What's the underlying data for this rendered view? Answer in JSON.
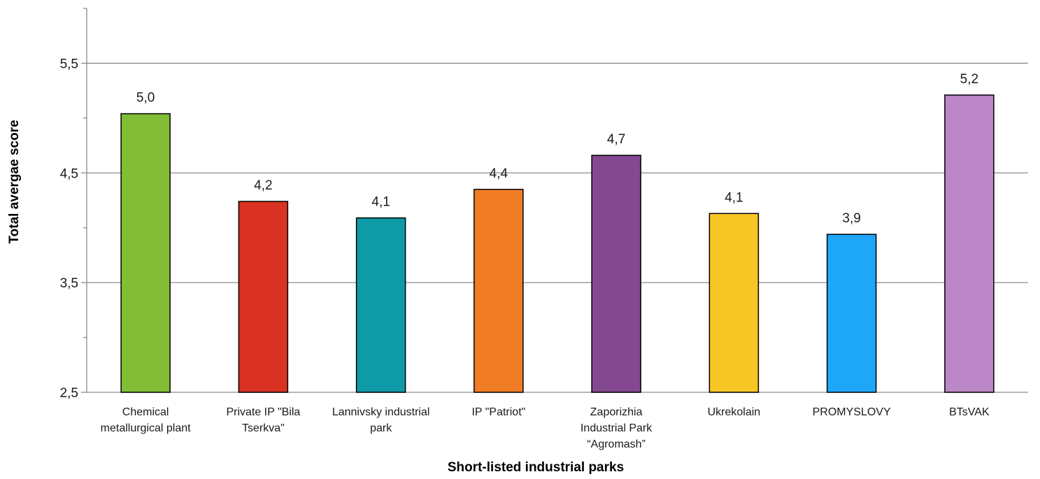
{
  "chart_data": {
    "type": "bar",
    "title": "",
    "xlabel": "Short-listed industrial parks",
    "ylabel": "Total avergae score",
    "ylim": [
      2.5,
      6.0
    ],
    "major_ticks": [
      2.5,
      3.5,
      4.5,
      5.5
    ],
    "major_tick_labels": [
      "2,5",
      "3,5",
      "4,5",
      "5,5"
    ],
    "minor_ticks": [
      3.0,
      4.0,
      5.0,
      6.0
    ],
    "grid": true,
    "legend": "none",
    "categories": [
      [
        "Chemical",
        "metallurgical plant"
      ],
      [
        "Private IP \"Bila",
        "Tserkva\""
      ],
      [
        "Lannivsky industrial",
        "park"
      ],
      [
        "IP \"Patriot\""
      ],
      [
        "Zaporizhia",
        "Industrial Park",
        "“Agromash”"
      ],
      [
        "Ukrekolain"
      ],
      [
        "PROMYSLOVY"
      ],
      [
        "BTsVAK"
      ]
    ],
    "values": [
      5.04,
      4.24,
      4.09,
      4.35,
      4.66,
      4.13,
      3.94,
      5.21
    ],
    "value_labels": [
      "5,0",
      "4,2",
      "4,1",
      "4,4",
      "4,7",
      "4,1",
      "3,9",
      "5,2"
    ],
    "colors": [
      "#82bd35",
      "#d93223",
      "#0e9aa7",
      "#f07d26",
      "#83488f",
      "#f8c624",
      "#1ea7f9",
      "#bc87c6"
    ]
  }
}
